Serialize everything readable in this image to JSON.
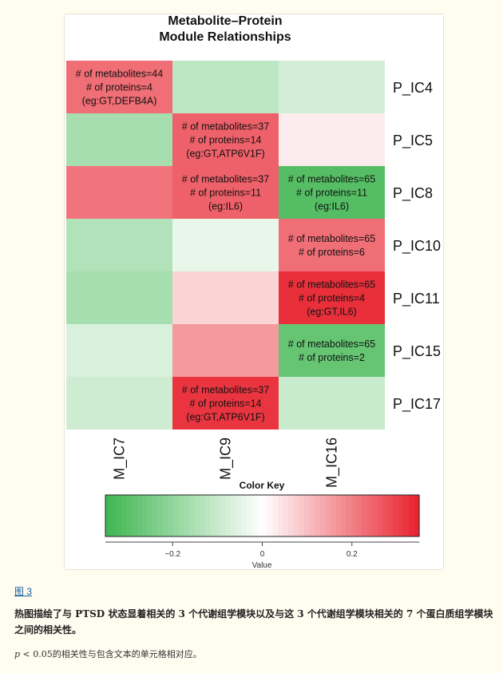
{
  "figure": {
    "link_label": "图 3",
    "caption": "热图描绘了与 PTSD 状态显着相关的 3 个代谢组学模块以及与这 3 个代谢组学模块相关的 7 个蛋白质组学模块之间的相关性。",
    "note_p": "p",
    "note_rest": " < 0.05的相关性与包含文本的单元格相对应。"
  },
  "chart_data": {
    "type": "heatmap",
    "title": "Metabolite–Protein\nModule Relationships",
    "columns": [
      "M_IC7",
      "M_IC9",
      "M_IC16"
    ],
    "rows": [
      "P_IC4",
      "P_IC5",
      "P_IC8",
      "P_IC10",
      "P_IC11",
      "P_IC15",
      "P_IC17"
    ],
    "values": [
      [
        0.23,
        -0.12,
        -0.08
      ],
      [
        -0.16,
        0.25,
        0.03
      ],
      [
        0.22,
        0.25,
        -0.31
      ],
      [
        -0.14,
        -0.04,
        0.23
      ],
      [
        -0.16,
        0.07,
        0.33
      ],
      [
        -0.07,
        0.16,
        -0.28
      ],
      [
        -0.09,
        0.32,
        -0.1
      ]
    ],
    "annotations": [
      {
        "row": 0,
        "col": 0,
        "lines": [
          "# of metabolites=44",
          "# of proteins=4",
          "(eg:GT,DEFB4A)"
        ]
      },
      {
        "row": 1,
        "col": 1,
        "lines": [
          "# of metabolites=37",
          "# of proteins=14",
          "(eg:GT,ATP6V1F)"
        ]
      },
      {
        "row": 2,
        "col": 1,
        "lines": [
          "# of metabolites=37",
          "# of proteins=11",
          "(eg:IL6)"
        ]
      },
      {
        "row": 2,
        "col": 2,
        "lines": [
          "# of metabolites=65",
          "# of proteins=11",
          "(eg:IL6)"
        ]
      },
      {
        "row": 3,
        "col": 2,
        "lines": [
          "# of metabolites=65",
          "# of proteins=6"
        ]
      },
      {
        "row": 4,
        "col": 2,
        "lines": [
          "# of metabolites=65",
          "# of proteins=4",
          "(eg:GT,IL6)"
        ]
      },
      {
        "row": 5,
        "col": 2,
        "lines": [
          "# of metabolites=65",
          "# of proteins=2"
        ]
      },
      {
        "row": 6,
        "col": 1,
        "lines": [
          "# of metabolites=37",
          "# of proteins=14",
          "(eg:GT,ATP6V1F)"
        ]
      }
    ],
    "color_key": {
      "title": "Color Key",
      "xlabel": "Value",
      "range": [
        -0.35,
        0.35
      ],
      "ticks": [
        -0.2,
        0,
        0.2
      ],
      "tick_labels": [
        "−0.2",
        "0",
        "0.2"
      ],
      "low_color": "#3fb650",
      "mid_color": "#ffffff",
      "high_color": "#e8222e"
    }
  }
}
